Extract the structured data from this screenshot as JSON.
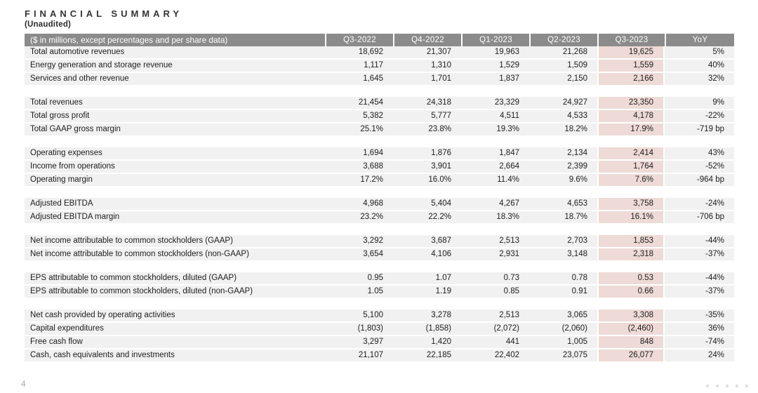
{
  "page": {
    "title": "FINANCIAL SUMMARY",
    "subtitle": "(Unaudited)",
    "page_number": "4"
  },
  "colors": {
    "header_bg": "#8b8b8b",
    "header_text": "#ffffff",
    "row_bg": "#f1f1f1",
    "highlight_column_bg": "#eedad6",
    "body_text": "#1d1d1d"
  },
  "table": {
    "label_header": "($ in millions, except percentages and per share data)",
    "column_headers": [
      "Q3-2022",
      "Q4-2022",
      "Q1-2023",
      "Q2-2023",
      "Q3-2023",
      "YoY"
    ],
    "highlighted_column": "Q3-2023",
    "sections": [
      {
        "rows": [
          {
            "label": "Total automotive revenues",
            "values": [
              "18,692",
              "21,307",
              "19,963",
              "21,268",
              "19,625",
              "5%"
            ]
          },
          {
            "label": "Energy generation and storage revenue",
            "values": [
              "1,117",
              "1,310",
              "1,529",
              "1,509",
              "1,559",
              "40%"
            ]
          },
          {
            "label": "Services and other revenue",
            "values": [
              "1,645",
              "1,701",
              "1,837",
              "2,150",
              "2,166",
              "32%"
            ]
          }
        ]
      },
      {
        "rows": [
          {
            "label": "Total revenues",
            "values": [
              "21,454",
              "24,318",
              "23,329",
              "24,927",
              "23,350",
              "9%"
            ]
          },
          {
            "label": "Total gross profit",
            "values": [
              "5,382",
              "5,777",
              "4,511",
              "4,533",
              "4,178",
              "-22%"
            ]
          },
          {
            "label": "Total GAAP gross margin",
            "values": [
              "25.1%",
              "23.8%",
              "19.3%",
              "18.2%",
              "17.9%",
              "-719 bp"
            ]
          }
        ]
      },
      {
        "rows": [
          {
            "label": "Operating expenses",
            "values": [
              "1,694",
              "1,876",
              "1,847",
              "2,134",
              "2,414",
              "43%"
            ]
          },
          {
            "label": "Income from operations",
            "values": [
              "3,688",
              "3,901",
              "2,664",
              "2,399",
              "1,764",
              "-52%"
            ]
          },
          {
            "label": "Operating margin",
            "values": [
              "17.2%",
              "16.0%",
              "11.4%",
              "9.6%",
              "7.6%",
              "-964 bp"
            ]
          }
        ]
      },
      {
        "rows": [
          {
            "label": "Adjusted EBITDA",
            "values": [
              "4,968",
              "5,404",
              "4,267",
              "4,653",
              "3,758",
              "-24%"
            ]
          },
          {
            "label": "Adjusted EBITDA margin",
            "values": [
              "23.2%",
              "22.2%",
              "18.3%",
              "18.7%",
              "16.1%",
              "-706 bp"
            ]
          }
        ]
      },
      {
        "rows": [
          {
            "label": "Net income attributable to common stockholders (GAAP)",
            "values": [
              "3,292",
              "3,687",
              "2,513",
              "2,703",
              "1,853",
              "-44%"
            ]
          },
          {
            "label": "Net income attributable to common stockholders (non-GAAP)",
            "values": [
              "3,654",
              "4,106",
              "2,931",
              "3,148",
              "2,318",
              "-37%"
            ]
          }
        ]
      },
      {
        "rows": [
          {
            "label": "EPS attributable to common stockholders, diluted (GAAP)",
            "values": [
              "0.95",
              "1.07",
              "0.73",
              "0.78",
              "0.53",
              "-44%"
            ]
          },
          {
            "label": "EPS attributable to common stockholders, diluted (non-GAAP)",
            "values": [
              "1.05",
              "1.19",
              "0.85",
              "0.91",
              "0.66",
              "-37%"
            ]
          }
        ]
      },
      {
        "rows": [
          {
            "label": "Net cash provided by operating activities",
            "values": [
              "5,100",
              "3,278",
              "2,513",
              "3,065",
              "3,308",
              "-35%"
            ]
          },
          {
            "label": "Capital expenditures",
            "values": [
              "(1,803)",
              "(1,858)",
              "(2,072)",
              "(2,060)",
              "(2,460)",
              "36%"
            ]
          },
          {
            "label": "Free cash flow",
            "values": [
              "3,297",
              "1,420",
              "441",
              "1,005",
              "848",
              "-74%"
            ]
          },
          {
            "label": "Cash, cash equivalents and investments",
            "values": [
              "21,107",
              "22,185",
              "22,402",
              "23,075",
              "26,077",
              "24%"
            ]
          }
        ]
      }
    ]
  },
  "footer": {
    "dots_count": 5
  }
}
